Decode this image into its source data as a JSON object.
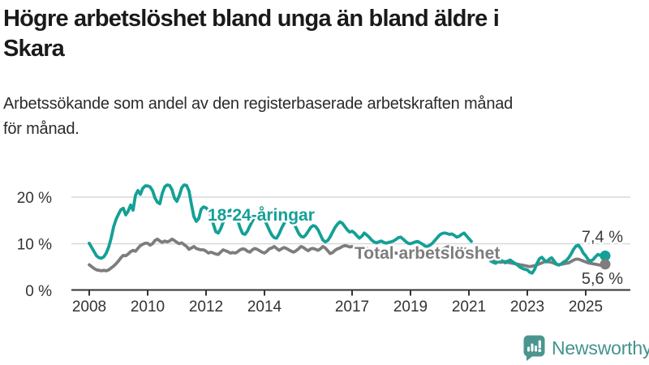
{
  "header": {
    "title_lines": [
      "Högre arbetslöshet bland unga än bland äldre i",
      "Skara"
    ],
    "subtitle_lines": [
      "Arbetssökande som andel av den registerbaserade arbetskraften månad",
      "för månad."
    ]
  },
  "footer": {
    "brand": "Newsworthy",
    "brand_color": "#43948c",
    "icon": "newsworthy-speech-bubble-chart-icon",
    "icon_color": "#4a968e"
  },
  "chart_data": {
    "type": "line",
    "unit": "%",
    "frequency": "monthly",
    "x_start": "2008-01",
    "x_end": "2025-09",
    "data_gap": {
      "from": "2021-03",
      "to": "2021-09"
    },
    "grid": "horizontal",
    "legend_position": "inline-labels",
    "x_ticks": [
      2008,
      2010,
      2012,
      2014,
      2017,
      2019,
      2021,
      2023,
      2025
    ],
    "y_ticks": [
      {
        "value": 0,
        "label": "0 %"
      },
      {
        "value": 10,
        "label": "10 %"
      },
      {
        "value": 20,
        "label": "20 %"
      }
    ],
    "ylim": [
      0,
      24
    ],
    "colors": {
      "youth": "#14a096",
      "total": "#7d7d7d",
      "axis": "#333333",
      "gridline": "#d9d9d9",
      "end_label": "#3a3a3a"
    },
    "series": [
      {
        "id": "youth",
        "name": "18-24-åringar",
        "color": "#14a096",
        "end_label": "7,4 %",
        "last_value": 7.4,
        "values": [
          10.1,
          9.2,
          8.3,
          7.4,
          7.0,
          6.9,
          7.2,
          8.0,
          9.3,
          11.2,
          13.6,
          15.2,
          16.3,
          17.3,
          17.6,
          16.2,
          17.0,
          18.3,
          17.2,
          20.4,
          21.4,
          20.6,
          21.9,
          22.4,
          22.4,
          22.2,
          21.4,
          19.8,
          18.9,
          18.6,
          20.8,
          22.2,
          22.6,
          22.5,
          21.6,
          19.8,
          19.1,
          20.3,
          22.0,
          22.6,
          22.5,
          21.3,
          18.4,
          15.8,
          14.8,
          15.4,
          17.4,
          17.9,
          17.7,
          17.1,
          16.0,
          14.2,
          12.6,
          12.3,
          13.2,
          14.6,
          15.9,
          16.8,
          17.2,
          16.9,
          16.3,
          15.0,
          13.4,
          12.2,
          12.0,
          12.7,
          13.8,
          14.8,
          15.8,
          16.4,
          16.2,
          15.7,
          15.1,
          14.1,
          12.9,
          11.9,
          11.3,
          11.2,
          12.1,
          13.3,
          14.3,
          15.1,
          15.4,
          15.0,
          14.4,
          13.4,
          12.3,
          11.6,
          11.4,
          11.9,
          12.7,
          13.5,
          13.9,
          13.7,
          13.0,
          11.9,
          10.8,
          10.4,
          10.7,
          11.5,
          12.5,
          13.5,
          14.2,
          14.7,
          14.4,
          13.7,
          13.0,
          12.5,
          12.7,
          12.3,
          11.7,
          11.2,
          11.6,
          12.3,
          11.9,
          11.4,
          10.8,
          10.4,
          10.2,
          10.4,
          10.6,
          10.3,
          10.1,
          10.3,
          10.4,
          10.6,
          10.9,
          11.3,
          11.4,
          11.0,
          10.5,
          10.1,
          10.0,
          10.2,
          10.4,
          10.5,
          10.2,
          9.9,
          9.5,
          9.4,
          9.7,
          10.1,
          10.7,
          11.3,
          11.9,
          12.2,
          12.3,
          12.2,
          12.0,
          12.1,
          11.8,
          11.4,
          11.6,
          12.0,
          12.3,
          11.7,
          11.1,
          10.5,
          null,
          null,
          null,
          null,
          null,
          null,
          null,
          6.3,
          6.0,
          5.8,
          6.3,
          6.6,
          6.2,
          5.9,
          6.3,
          6.5,
          6.1,
          5.8,
          5.4,
          5.0,
          4.7,
          4.5,
          4.4,
          3.9,
          3.7,
          4.5,
          5.8,
          6.8,
          7.1,
          6.5,
          6.1,
          6.7,
          7.0,
          6.3,
          5.6,
          5.4,
          5.7,
          6.1,
          6.4,
          7.0,
          7.8,
          8.8,
          9.5,
          9.7,
          9.0,
          8.0,
          7.4,
          6.6,
          6.3,
          6.6,
          7.2,
          7.7,
          7.5,
          7.2,
          7.4
        ]
      },
      {
        "id": "total",
        "name": "Total arbetslöshet",
        "color": "#7d7d7d",
        "end_label": "5,6 %",
        "last_value": 5.6,
        "values": [
          5.5,
          5.1,
          4.7,
          4.4,
          4.3,
          4.2,
          4.3,
          4.2,
          4.4,
          4.8,
          5.2,
          5.7,
          6.3,
          7.0,
          7.5,
          7.4,
          7.8,
          8.3,
          8.6,
          8.4,
          9.0,
          9.6,
          9.9,
          10.1,
          10.1,
          9.7,
          10.0,
          10.7,
          11.0,
          10.6,
          10.3,
          10.6,
          10.4,
          10.6,
          11.0,
          10.7,
          10.3,
          10.0,
          10.2,
          9.8,
          9.4,
          8.8,
          9.1,
          9.4,
          9.0,
          8.8,
          8.7,
          8.7,
          8.4,
          8.0,
          8.2,
          8.0,
          7.8,
          7.7,
          8.2,
          8.7,
          8.5,
          8.3,
          8.0,
          8.1,
          8.0,
          8.3,
          8.7,
          8.9,
          8.8,
          8.4,
          8.2,
          8.7,
          9.0,
          8.8,
          8.5,
          8.2,
          8.0,
          8.4,
          8.9,
          9.1,
          9.4,
          9.0,
          8.6,
          8.9,
          9.2,
          9.0,
          8.7,
          8.4,
          8.2,
          8.5,
          8.9,
          9.4,
          9.2,
          8.8,
          8.5,
          8.9,
          9.0,
          8.8,
          8.6,
          8.9,
          9.4,
          9.1,
          8.5,
          7.9,
          8.1,
          8.6,
          8.9,
          9.1,
          9.4,
          9.6,
          9.5,
          9.3,
          9.4,
          9.2,
          9.0,
          8.9,
          9.1,
          9.2,
          9.0,
          8.8,
          8.6,
          8.5,
          8.4,
          8.3,
          8.2,
          8.1,
          8.0,
          7.9,
          8.0,
          8.1,
          8.0,
          7.9,
          7.8,
          7.7,
          7.6,
          7.7,
          7.6,
          7.7,
          7.8,
          7.9,
          7.8,
          7.7,
          7.8,
          7.9,
          8.0,
          8.1,
          8.2,
          8.4,
          8.6,
          8.8,
          9.0,
          9.3,
          9.4,
          9.5,
          9.4,
          9.2,
          9.1,
          9.0,
          8.9,
          8.8,
          8.7,
          8.6,
          null,
          null,
          null,
          null,
          null,
          null,
          null,
          6.4,
          6.3,
          6.2,
          6.1,
          6.0,
          6.1,
          6.2,
          6.0,
          5.9,
          5.8,
          5.7,
          5.6,
          5.5,
          5.4,
          5.3,
          5.2,
          5.1,
          5.2,
          5.3,
          5.5,
          5.7,
          5.9,
          6.1,
          6.2,
          6.1,
          6.0,
          5.8,
          5.6,
          5.5,
          5.6,
          5.7,
          5.8,
          5.9,
          6.2,
          6.5,
          6.7,
          6.7,
          6.5,
          6.3,
          6.1,
          5.9,
          5.8,
          5.7,
          5.6,
          5.5,
          5.4,
          5.5,
          5.6
        ]
      }
    ]
  }
}
